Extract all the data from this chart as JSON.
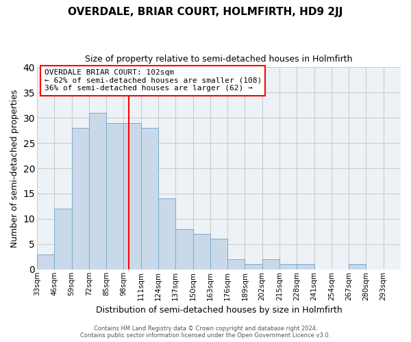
{
  "title": "OVERDALE, BRIAR COURT, HOLMFIRTH, HD9 2JJ",
  "subtitle": "Size of property relative to semi-detached houses in Holmfirth",
  "xlabel": "Distribution of semi-detached houses by size in Holmfirth",
  "ylabel": "Number of semi-detached properties",
  "bin_labels": [
    "33sqm",
    "46sqm",
    "59sqm",
    "72sqm",
    "85sqm",
    "98sqm",
    "111sqm",
    "124sqm",
    "137sqm",
    "150sqm",
    "163sqm",
    "176sqm",
    "189sqm",
    "202sqm",
    "215sqm",
    "228sqm",
    "241sqm",
    "254sqm",
    "267sqm",
    "280sqm",
    "293sqm"
  ],
  "bar_values": [
    3,
    12,
    28,
    31,
    29,
    29,
    28,
    14,
    8,
    7,
    6,
    2,
    1,
    2,
    1,
    1,
    0,
    0,
    1,
    0,
    0
  ],
  "bar_color": "#c9d9e9",
  "bar_edge_color": "#7aaaca",
  "bin_edges": [
    33,
    46,
    59,
    72,
    85,
    98,
    111,
    124,
    137,
    150,
    163,
    176,
    189,
    202,
    215,
    228,
    241,
    254,
    267,
    280,
    293,
    306
  ],
  "property_line_x": 102,
  "property_line_color": "red",
  "annotation_title": "OVERDALE BRIAR COURT: 102sqm",
  "annotation_line1": "← 62% of semi-detached houses are smaller (108)",
  "annotation_line2": "36% of semi-detached houses are larger (62) →",
  "annotation_box_color": "white",
  "annotation_box_edge_color": "red",
  "ylim": [
    0,
    40
  ],
  "yticks": [
    0,
    5,
    10,
    15,
    20,
    25,
    30,
    35,
    40
  ],
  "footer_line1": "Contains HM Land Registry data © Crown copyright and database right 2024.",
  "footer_line2": "Contains public sector information licensed under the Open Government Licence v3.0.",
  "grid_color": "#cccccc",
  "background_color": "#edf2f7"
}
